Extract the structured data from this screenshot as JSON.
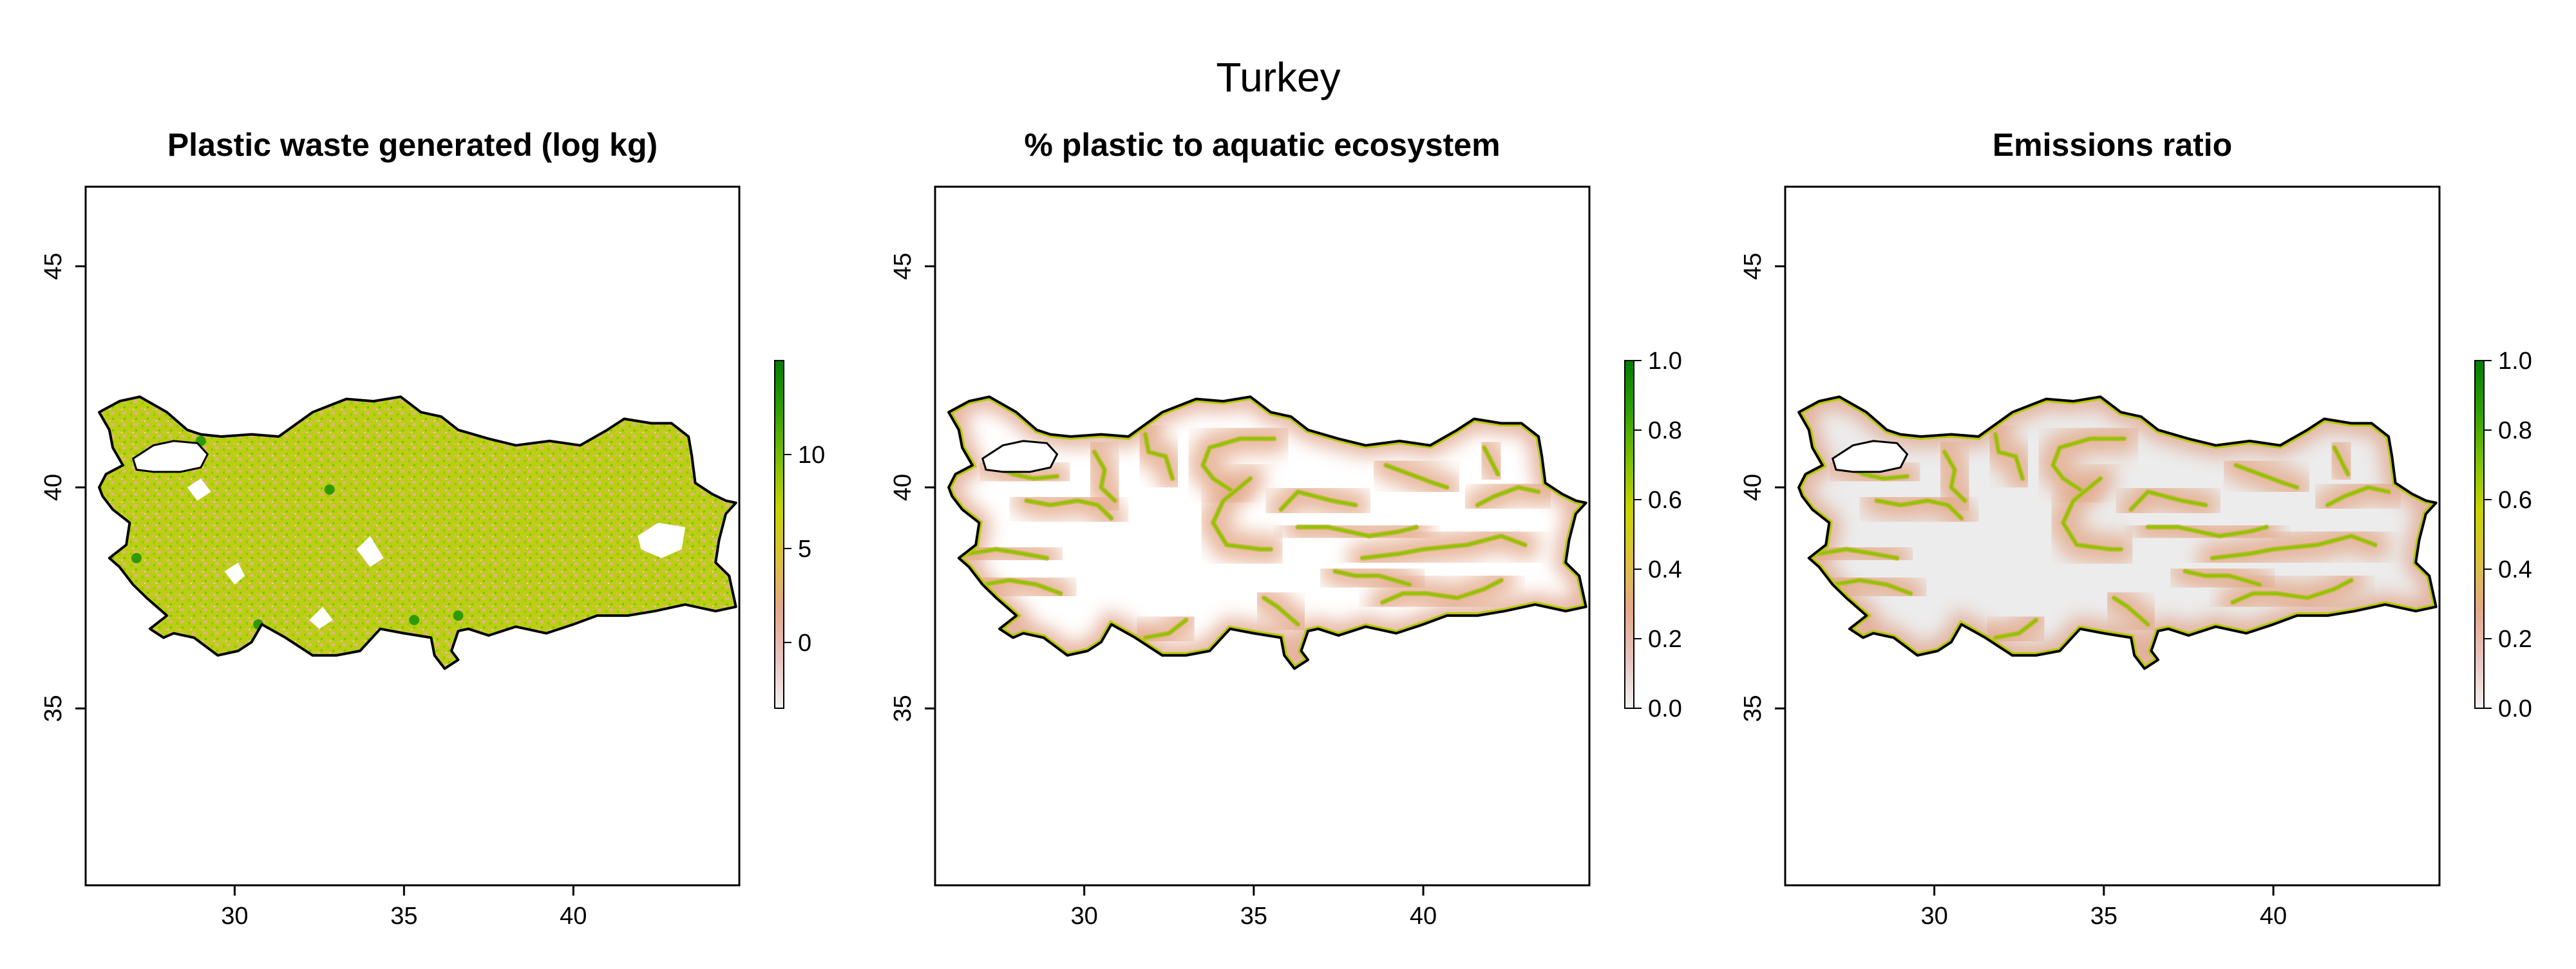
{
  "figure": {
    "title": "Turkey"
  },
  "colors": {
    "ramp": [
      "#f2f2f2",
      "#e8c4c0",
      "#e3a98a",
      "#dcc23a",
      "#c9d400",
      "#7ec000",
      "#2ea000",
      "#007d00"
    ],
    "land_plain": "#ffffff",
    "land_grey": "#ececec",
    "border": "#000000",
    "river": "#8ec400"
  },
  "chart_data": [
    {
      "type": "heatmap",
      "title": "Plastic waste generated (log kg)",
      "xlim": [
        25.6,
        44.9
      ],
      "ylim": [
        31,
        46.8
      ],
      "x_ticks": [
        "30",
        "35",
        "40"
      ],
      "y_ticks": [
        "35",
        "40",
        "45"
      ],
      "fill": "waste",
      "legend": {
        "ticks": [
          "0",
          "5",
          "10"
        ],
        "tick_values": [
          0,
          5,
          10
        ],
        "range": [
          -3.5,
          15
        ]
      }
    },
    {
      "type": "heatmap",
      "title": "% plastic to aquatic ecosystem",
      "xlim": [
        25.6,
        44.9
      ],
      "ylim": [
        31,
        46.8
      ],
      "x_ticks": [
        "30",
        "35",
        "40"
      ],
      "y_ticks": [
        "35",
        "40",
        "45"
      ],
      "fill": "plain",
      "legend": {
        "ticks": [
          "0.0",
          "0.2",
          "0.4",
          "0.6",
          "0.8",
          "1.0"
        ],
        "tick_values": [
          0,
          0.2,
          0.4,
          0.6,
          0.8,
          1.0
        ],
        "range": [
          0,
          1
        ]
      }
    },
    {
      "type": "heatmap",
      "title": "Emissions ratio",
      "xlim": [
        25.6,
        44.9
      ],
      "ylim": [
        31,
        46.8
      ],
      "x_ticks": [
        "30",
        "35",
        "40"
      ],
      "y_ticks": [
        "35",
        "40",
        "45"
      ],
      "fill": "grey",
      "legend": {
        "ticks": [
          "0.0",
          "0.2",
          "0.4",
          "0.6",
          "0.8",
          "1.0"
        ],
        "tick_values": [
          0,
          0.2,
          0.4,
          0.6,
          0.8,
          1.0
        ],
        "range": [
          0,
          1
        ]
      }
    }
  ],
  "turkey_outline": [
    [
      26.0,
      40.0
    ],
    [
      26.2,
      40.3
    ],
    [
      26.7,
      40.5
    ],
    [
      26.4,
      40.9
    ],
    [
      26.3,
      41.3
    ],
    [
      26.0,
      41.7
    ],
    [
      26.6,
      41.95
    ],
    [
      27.2,
      42.05
    ],
    [
      28.0,
      41.7
    ],
    [
      28.6,
      41.3
    ],
    [
      29.0,
      41.2
    ],
    [
      29.6,
      41.15
    ],
    [
      30.5,
      41.2
    ],
    [
      31.3,
      41.15
    ],
    [
      32.3,
      41.7
    ],
    [
      33.3,
      42.0
    ],
    [
      34.1,
      41.95
    ],
    [
      34.9,
      42.05
    ],
    [
      35.5,
      41.7
    ],
    [
      36.1,
      41.6
    ],
    [
      36.6,
      41.3
    ],
    [
      37.5,
      41.1
    ],
    [
      38.3,
      40.95
    ],
    [
      39.3,
      41.05
    ],
    [
      40.2,
      40.95
    ],
    [
      41.0,
      41.3
    ],
    [
      41.5,
      41.55
    ],
    [
      42.3,
      41.45
    ],
    [
      42.9,
      41.45
    ],
    [
      43.4,
      41.15
    ],
    [
      43.5,
      40.7
    ],
    [
      43.6,
      40.1
    ],
    [
      44.1,
      39.85
    ],
    [
      44.5,
      39.7
    ],
    [
      44.8,
      39.65
    ],
    [
      44.5,
      39.4
    ],
    [
      44.3,
      38.8
    ],
    [
      44.2,
      38.3
    ],
    [
      44.6,
      38.0
    ],
    [
      44.8,
      37.3
    ],
    [
      44.2,
      37.2
    ],
    [
      43.3,
      37.35
    ],
    [
      42.4,
      37.2
    ],
    [
      41.6,
      37.1
    ],
    [
      40.7,
      37.1
    ],
    [
      40.0,
      36.9
    ],
    [
      39.2,
      36.7
    ],
    [
      38.3,
      36.85
    ],
    [
      37.5,
      36.65
    ],
    [
      36.9,
      36.8
    ],
    [
      36.6,
      36.75
    ],
    [
      36.4,
      36.3
    ],
    [
      36.6,
      36.1
    ],
    [
      36.2,
      35.9
    ],
    [
      35.9,
      36.2
    ],
    [
      35.8,
      36.6
    ],
    [
      35.0,
      36.7
    ],
    [
      34.3,
      36.8
    ],
    [
      33.7,
      36.3
    ],
    [
      33.0,
      36.2
    ],
    [
      32.3,
      36.2
    ],
    [
      31.5,
      36.6
    ],
    [
      30.8,
      36.9
    ],
    [
      30.5,
      36.5
    ],
    [
      30.1,
      36.3
    ],
    [
      29.5,
      36.2
    ],
    [
      28.8,
      36.6
    ],
    [
      28.2,
      36.7
    ],
    [
      27.9,
      36.6
    ],
    [
      27.5,
      36.8
    ],
    [
      28.0,
      37.1
    ],
    [
      27.4,
      37.5
    ],
    [
      27.0,
      37.8
    ],
    [
      26.6,
      38.2
    ],
    [
      26.3,
      38.4
    ],
    [
      26.8,
      38.7
    ],
    [
      26.9,
      39.2
    ],
    [
      26.4,
      39.5
    ],
    [
      26.1,
      39.8
    ],
    [
      26.0,
      40.0
    ]
  ],
  "marmara_sea": [
    [
      27.0,
      40.65
    ],
    [
      27.6,
      40.95
    ],
    [
      28.2,
      41.05
    ],
    [
      28.9,
      41.0
    ],
    [
      29.2,
      40.75
    ],
    [
      29.0,
      40.45
    ],
    [
      28.4,
      40.35
    ],
    [
      27.6,
      40.35
    ],
    [
      27.1,
      40.4
    ],
    [
      27.0,
      40.65
    ]
  ],
  "rivers": [
    [
      [
        27.3,
        40.5
      ],
      [
        27.9,
        40.3
      ],
      [
        28.5,
        40.2
      ],
      [
        29.2,
        40.25
      ]
    ],
    [
      [
        26.6,
        38.5
      ],
      [
        27.4,
        38.6
      ],
      [
        28.2,
        38.5
      ],
      [
        28.9,
        38.4
      ]
    ],
    [
      [
        27.0,
        37.8
      ],
      [
        27.8,
        37.9
      ],
      [
        28.6,
        37.8
      ],
      [
        29.3,
        37.6
      ]
    ],
    [
      [
        28.3,
        39.7
      ],
      [
        29.0,
        39.6
      ],
      [
        29.8,
        39.7
      ],
      [
        30.4,
        39.6
      ],
      [
        30.8,
        39.3
      ]
    ],
    [
      [
        30.3,
        40.8
      ],
      [
        30.6,
        40.4
      ],
      [
        30.5,
        40.0
      ],
      [
        30.9,
        39.7
      ]
    ],
    [
      [
        31.8,
        41.2
      ],
      [
        31.9,
        40.8
      ],
      [
        32.4,
        40.7
      ],
      [
        32.6,
        40.2
      ]
    ],
    [
      [
        34.4,
        39.9
      ],
      [
        33.8,
        40.2
      ],
      [
        33.5,
        40.5
      ],
      [
        33.7,
        40.9
      ],
      [
        34.6,
        41.1
      ],
      [
        35.6,
        41.1
      ]
    ],
    [
      [
        34.9,
        40.2
      ],
      [
        34.1,
        39.7
      ],
      [
        33.8,
        39.2
      ],
      [
        34.2,
        38.7
      ],
      [
        35.2,
        38.6
      ],
      [
        35.5,
        38.6
      ]
    ],
    [
      [
        35.8,
        39.5
      ],
      [
        36.3,
        39.9
      ],
      [
        37.3,
        39.7
      ],
      [
        38.0,
        39.6
      ]
    ],
    [
      [
        36.3,
        39.1
      ],
      [
        37.2,
        39.1
      ],
      [
        38.4,
        38.9
      ],
      [
        39.3,
        39.0
      ],
      [
        39.8,
        39.1
      ]
    ],
    [
      [
        38.9,
        40.5
      ],
      [
        39.6,
        40.3
      ],
      [
        40.3,
        40.1
      ],
      [
        40.7,
        40.0
      ]
    ],
    [
      [
        41.8,
        40.9
      ],
      [
        42.0,
        40.6
      ],
      [
        42.2,
        40.3
      ]
    ],
    [
      [
        43.4,
        39.9
      ],
      [
        42.8,
        40.0
      ],
      [
        42.1,
        39.8
      ],
      [
        41.6,
        39.6
      ]
    ],
    [
      [
        38.2,
        38.4
      ],
      [
        39.3,
        38.5
      ],
      [
        40.0,
        38.6
      ],
      [
        41.3,
        38.7
      ],
      [
        42.3,
        38.9
      ],
      [
        43.0,
        38.7
      ]
    ],
    [
      [
        37.4,
        38.1
      ],
      [
        38.0,
        38.0
      ],
      [
        38.7,
        38.0
      ],
      [
        39.6,
        37.8
      ]
    ],
    [
      [
        38.8,
        37.4
      ],
      [
        39.4,
        37.6
      ],
      [
        40.1,
        37.6
      ],
      [
        41.0,
        37.5
      ],
      [
        41.8,
        37.7
      ],
      [
        42.3,
        37.9
      ]
    ],
    [
      [
        35.3,
        37.5
      ],
      [
        35.7,
        37.3
      ],
      [
        36.0,
        37.1
      ],
      [
        36.3,
        36.9
      ]
    ],
    [
      [
        33.0,
        37.0
      ],
      [
        32.5,
        36.7
      ],
      [
        31.8,
        36.6
      ]
    ]
  ],
  "interior_blanks": [
    [
      [
        34.4,
        38.4
      ],
      [
        34.0,
        38.9
      ],
      [
        33.6,
        38.6
      ],
      [
        34.0,
        38.2
      ],
      [
        34.4,
        38.4
      ]
    ],
    [
      [
        41.9,
        38.9
      ],
      [
        42.5,
        39.2
      ],
      [
        43.3,
        39.1
      ],
      [
        43.2,
        38.6
      ],
      [
        42.6,
        38.4
      ],
      [
        42.0,
        38.6
      ],
      [
        41.9,
        38.9
      ]
    ],
    [
      [
        32.2,
        37.0
      ],
      [
        32.6,
        37.3
      ],
      [
        32.9,
        37.0
      ],
      [
        32.5,
        36.8
      ],
      [
        32.2,
        37.0
      ]
    ],
    [
      [
        28.6,
        40.0
      ],
      [
        29.0,
        40.2
      ],
      [
        29.3,
        39.9
      ],
      [
        28.9,
        39.7
      ],
      [
        28.6,
        40.0
      ]
    ],
    [
      [
        29.7,
        38.1
      ],
      [
        30.1,
        38.3
      ],
      [
        30.3,
        38.0
      ],
      [
        30.0,
        37.8
      ],
      [
        29.7,
        38.1
      ]
    ]
  ]
}
